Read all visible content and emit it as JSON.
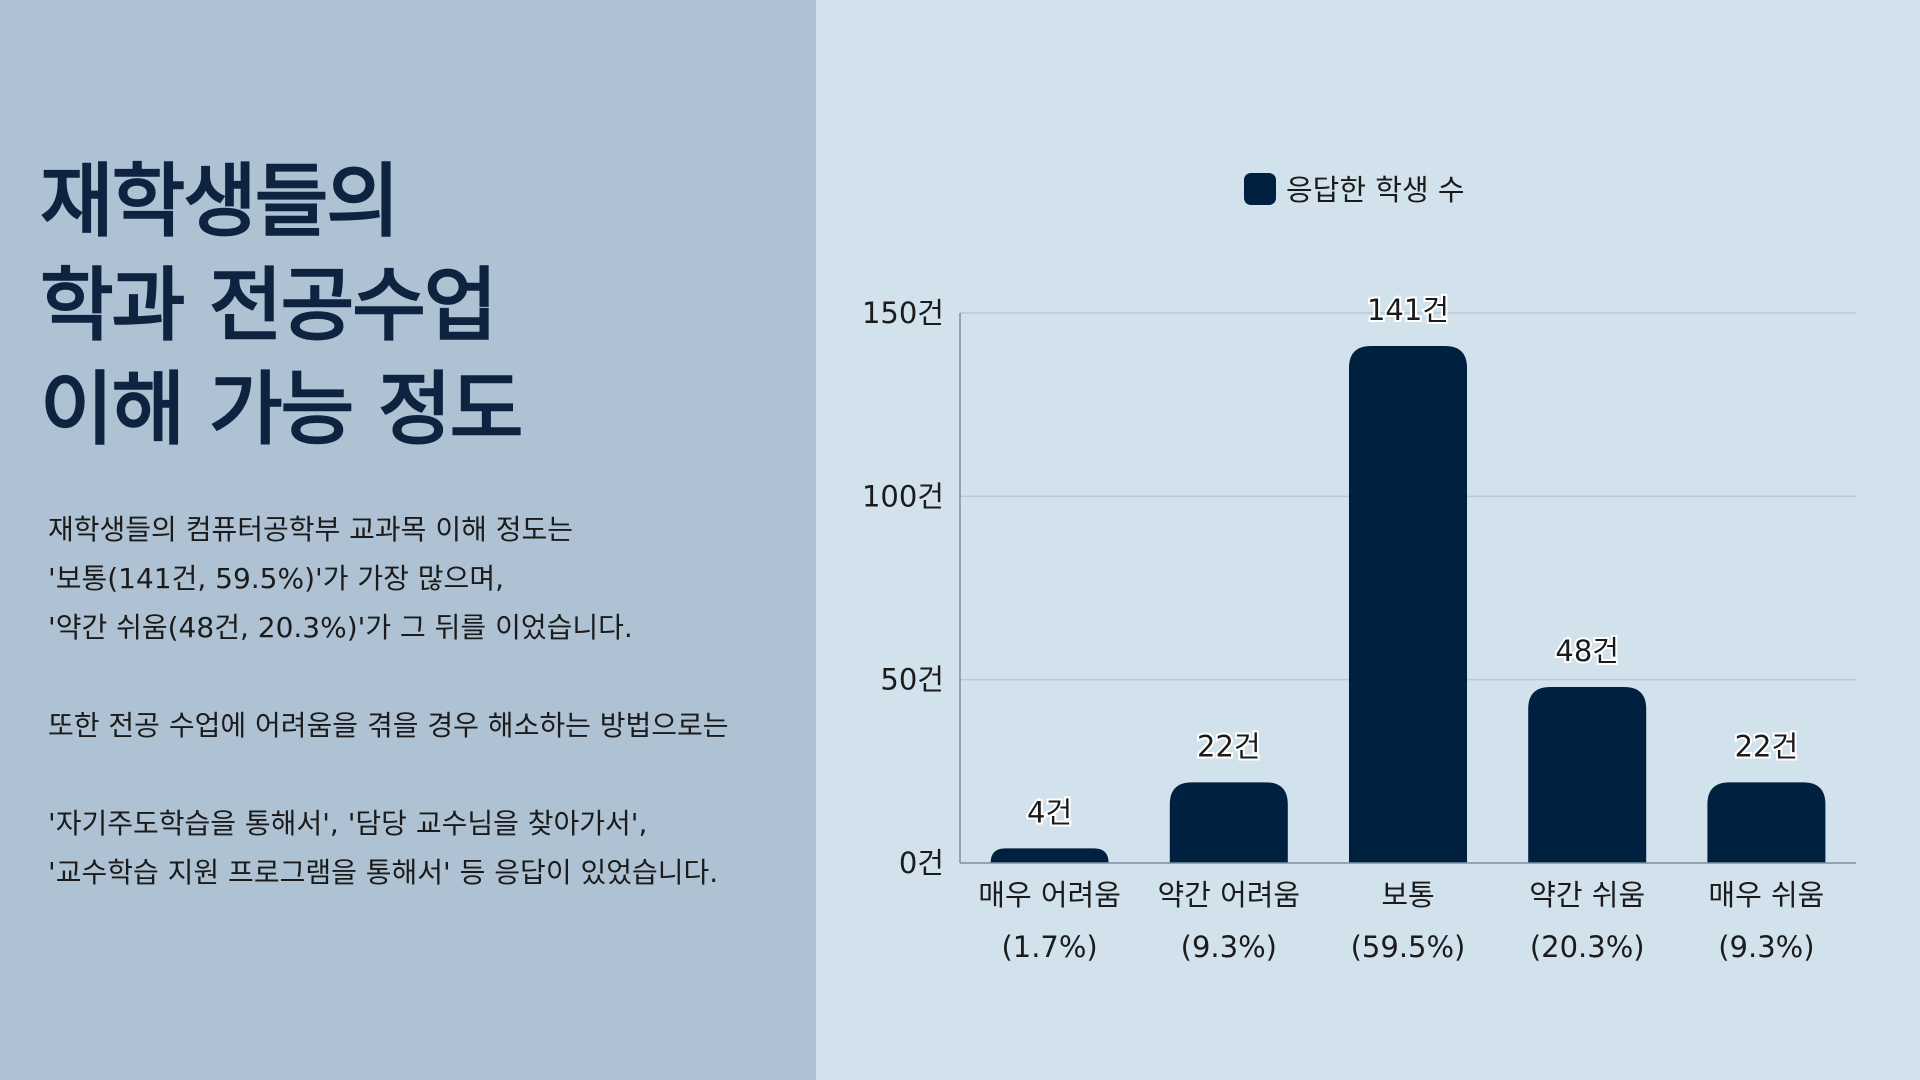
{
  "title": {
    "line1": "재학생들의",
    "line2": "학과 전공수업",
    "line3": "이해 가능 정도"
  },
  "description": {
    "p1_line1": "재학생들의 컴퓨터공학부 교과목 이해 정도는",
    "p1_line2": "'보통(141건, 59.5%)'가 가장 많으며,",
    "p1_line3": "'약간 쉬움(48건, 20.3%)'가 그 뒤를 이었습니다.",
    "p2_line1": "또한 전공 수업에 어려움을 겪을 경우 해소하는 방법으로는",
    "p3_line1": "'자기주도학습을 통해서', '담당 교수님을 찾아가서',",
    "p3_line2": "'교수학습 지원 프로그램을 통해서' 등 응답이 있었습니다."
  },
  "colors": {
    "left_bg": "#aec2d3",
    "right_bg": "#d1e2ed",
    "bar": "#00203f",
    "title": "#0d2340"
  },
  "chart_data": {
    "type": "bar",
    "categories": [
      "매우 어려움",
      "약간 어려움",
      "보통",
      "약간 쉬움",
      "매우 쉬움"
    ],
    "category_percents": [
      "(1.7%)",
      "(9.3%)",
      "(59.5%)",
      "(20.3%)",
      "(9.3%)"
    ],
    "series": [
      {
        "name": "응답한 학생 수",
        "values": [
          4,
          22,
          141,
          48,
          22
        ]
      }
    ],
    "value_labels": [
      "4건",
      "22건",
      "141건",
      "48건",
      "22건"
    ],
    "yticks": [
      0,
      50,
      100,
      150
    ],
    "ytick_labels": [
      "0건",
      "50건",
      "100건",
      "150건"
    ],
    "ylim": [
      0,
      150
    ],
    "legend_position": "top-center",
    "grid": true
  }
}
